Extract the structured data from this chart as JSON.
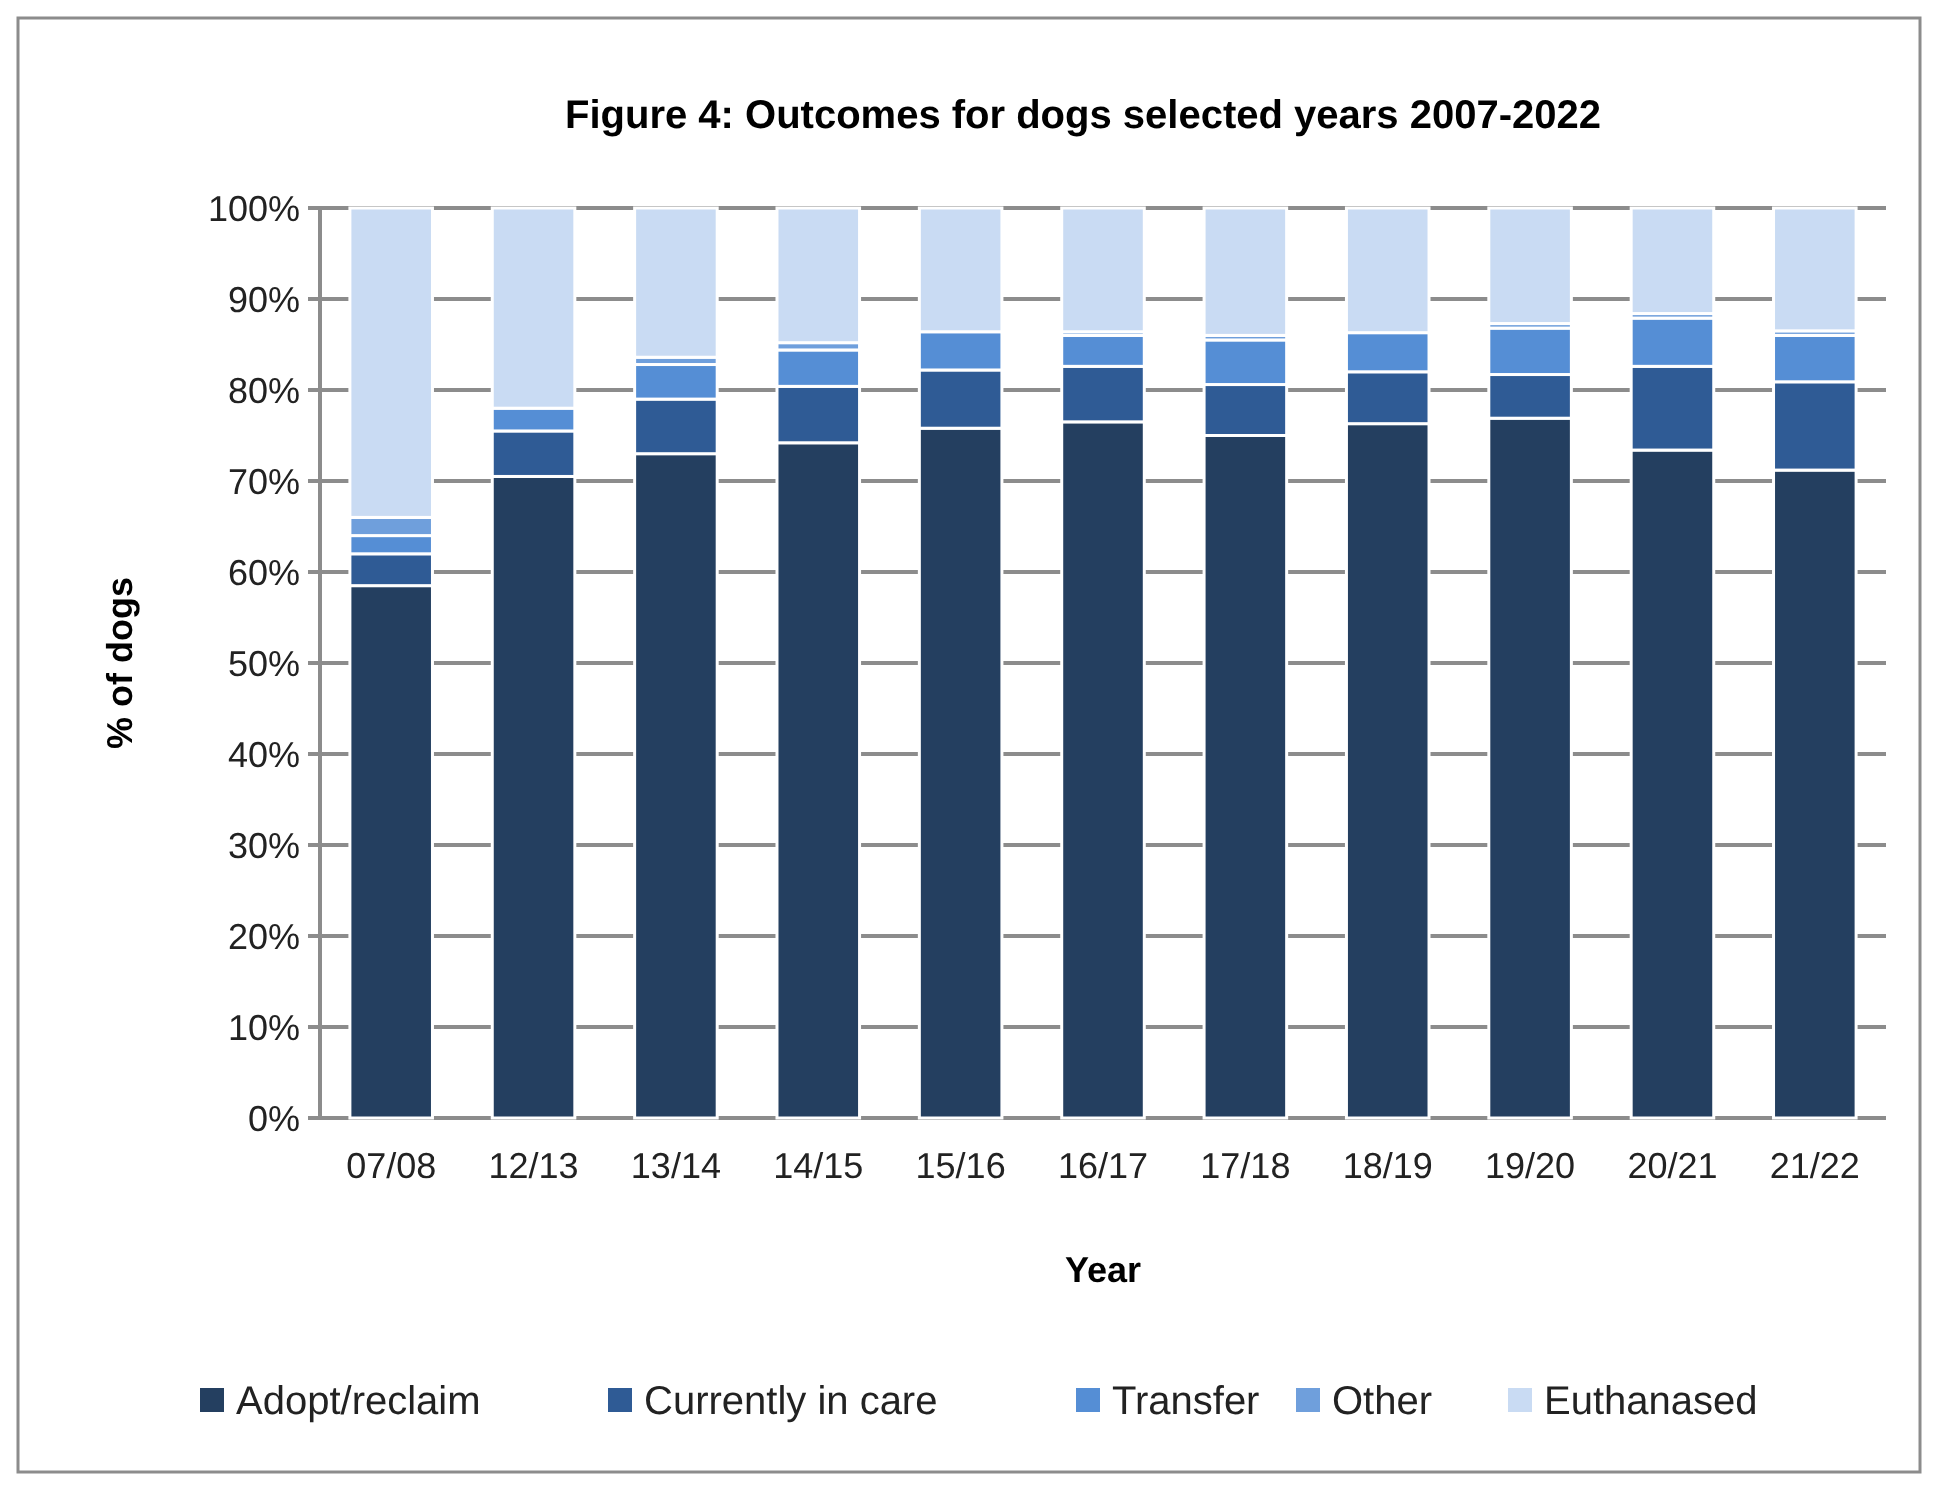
{
  "chart_data": {
    "type": "bar",
    "stacked": true,
    "title": "Figure 4: Outcomes for dogs selected years 2007-2022",
    "xlabel": "Year",
    "ylabel": "% of dogs",
    "categories": [
      "07/08",
      "12/13",
      "13/14",
      "14/15",
      "15/16",
      "16/17",
      "17/18",
      "18/19",
      "19/20",
      "20/21",
      "21/22"
    ],
    "series": [
      {
        "name": "Adopt/reclaim",
        "color": "#243f60",
        "values": [
          58.5,
          70.5,
          73,
          74.2,
          75.8,
          76.5,
          75,
          76.3,
          76.9,
          73.4,
          71.2
        ]
      },
      {
        "name": "Currently in care",
        "color": "#2f5b95",
        "values": [
          3.5,
          5,
          6,
          6.2,
          6.4,
          6.1,
          5.6,
          5.7,
          4.8,
          9.2,
          9.7
        ]
      },
      {
        "name": "Transfer",
        "color": "#558ed5",
        "values": [
          2,
          2.5,
          3.8,
          4,
          4.2,
          3.4,
          4.9,
          4.3,
          5.1,
          5.3,
          5.1
        ]
      },
      {
        "name": "Other",
        "color": "#6f9fdc",
        "values": [
          2,
          null,
          0.8,
          0.8,
          null,
          0.4,
          0.5,
          null,
          0.5,
          0.5,
          0.5
        ]
      },
      {
        "name": "Euthanased",
        "color": "#c9dbf3",
        "values": [
          34,
          22,
          16.4,
          14.8,
          13.6,
          13.6,
          14,
          13.7,
          12.7,
          11.6,
          13.5
        ]
      }
    ],
    "ylim": [
      0,
      100
    ],
    "yticks": [
      {
        "value": 0,
        "label": "0%"
      },
      {
        "value": 10,
        "label": "10%"
      },
      {
        "value": 20,
        "label": "20%"
      },
      {
        "value": 30,
        "label": "30%"
      },
      {
        "value": 40,
        "label": "40%"
      },
      {
        "value": 50,
        "label": "50%"
      },
      {
        "value": 60,
        "label": "60%"
      },
      {
        "value": 70,
        "label": "70%"
      },
      {
        "value": 80,
        "label": "80%"
      },
      {
        "value": 90,
        "label": "90%"
      },
      {
        "value": 100,
        "label": "100%"
      }
    ],
    "grid": "y",
    "legend": "bottom"
  }
}
